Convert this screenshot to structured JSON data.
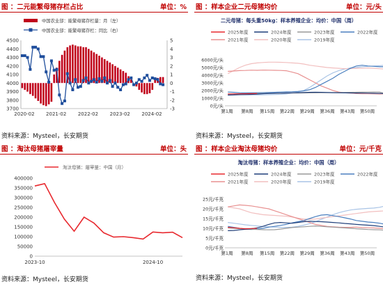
{
  "panels": [
    {
      "title": "图 ：二元能繁母猪存栏占比",
      "unit": "单位：%",
      "source": "资料来源：Mysteel，长安期货"
    },
    {
      "title": "图 ：样本企业二元母猪均价",
      "unit": "单位：元/头",
      "source": "资料来源：Mysteel，长安期货"
    },
    {
      "title": "图 ：淘汰母猪屠宰量",
      "unit": "单位：头",
      "source": "资料来源：Mysteel，长安期货"
    },
    {
      "title": "图 ：样本企业淘汰母猪均价",
      "unit": "单位：元/千克",
      "source": "资料来源：Mysteel，长安期货"
    }
  ],
  "chart_data": [
    {
      "type": "bar",
      "legend": [
        "中国农业部：能繁母猪存栏量：月（左）",
        "中国农业部：能繁母猪存栏：同比（右）"
      ],
      "x_ticks": [
        "2020-02",
        "2021-02",
        "2022-02",
        "2023-02",
        "2024-02"
      ],
      "y_left_ticks": [
        "3700",
        "3800",
        "3900",
        "4000",
        "4100",
        "4200",
        "4300",
        "4400",
        "4500"
      ],
      "y_right_ticks": [
        "-3",
        "-2",
        "-1",
        "0",
        "1",
        "2",
        "3",
        "4",
        "5"
      ],
      "ylim_left": [
        3700,
        4500
      ],
      "ylim_right": [
        -3,
        5
      ],
      "bar_values": [
        -0.6,
        -0.8,
        -1.0,
        -1.3,
        -1.5,
        -1.8,
        -2.1,
        -2.4,
        -2.6,
        -2.7,
        -2.5,
        -2.2,
        1.0,
        1.8,
        2.6,
        3.3,
        3.8,
        4.2,
        4.4,
        4.5,
        4.4,
        4.3,
        4.3,
        4.2,
        4.2,
        4.0,
        3.8,
        3.6,
        3.4,
        3.2,
        3.0,
        2.8,
        2.6,
        2.4,
        2.2,
        2.0,
        1.8,
        1.6,
        1.4,
        1.2,
        0.8,
        0.4,
        0.0,
        -0.4,
        -0.8,
        -1.1,
        -1.3,
        -1.3,
        -1.2,
        -0.8,
        0.6,
        0.6,
        0.7,
        0.7
      ],
      "line_values": [
        4320,
        4320,
        4300,
        4160,
        4420,
        4420,
        4400,
        4310,
        4310,
        4130,
        4010,
        4260,
        4150,
        4160,
        3860,
        3760,
        3790,
        4110,
        4000,
        3920,
        4040,
        3950,
        3960,
        4030,
        4060,
        4000,
        4020,
        4040,
        4010,
        4050,
        4020,
        4060,
        4000,
        4030,
        3960,
        4000,
        3950,
        3920,
        3980,
        3990,
        4040,
        4060,
        3980,
        4000,
        4040,
        4020,
        4060,
        4090,
        4030,
        4060,
        4050,
        4040,
        3990,
        3980
      ]
    },
    {
      "type": "line",
      "subtitle": "二元母猪：每头重50kg：样本养殖企业：均价：中国（周）",
      "x_ticks": [
        "第1周",
        "第8周",
        "第15周",
        "第22周",
        "第29周",
        "第36周",
        "第43周",
        "第50周"
      ],
      "y_ticks": [
        "0元/头",
        "1000元/头",
        "2000元/头",
        "3000元/头",
        "4000元/头",
        "5000元/头",
        "6000元/头"
      ],
      "ylim": [
        0,
        6000
      ],
      "series": [
        {
          "name": "2025年度",
          "color": "#e8292f",
          "values": [
            1550,
            1560,
            1570,
            1580,
            1590,
            1600
          ]
        },
        {
          "name": "2024年度",
          "color": "#1f3f7a",
          "values": [
            1400,
            1420,
            1450,
            1470,
            1500,
            1540,
            1580,
            1610,
            1640,
            1660,
            1680,
            1700,
            1720,
            1740,
            1760,
            1770,
            1760,
            1740,
            1720,
            1700,
            1690,
            1680,
            1670,
            1660,
            1650,
            1640,
            1620,
            1600
          ]
        },
        {
          "name": "2023年度",
          "color": "#999999",
          "values": [
            1550,
            1560,
            1570,
            1580,
            1590,
            1600,
            1610,
            1620,
            1630,
            1640,
            1650,
            1660,
            1670,
            1680,
            1690,
            1700,
            1710,
            1720,
            1730,
            1740,
            1750,
            1760,
            1770,
            1780,
            1790,
            1800,
            1780,
            1600
          ]
        },
        {
          "name": "2022年度",
          "color": "#4a7fbf",
          "values": [
            1800,
            1760,
            1700,
            1680,
            1690,
            1710,
            1720,
            1740,
            1760,
            1800,
            1830,
            1850,
            1880,
            1950,
            2100,
            2400,
            2800,
            3200,
            3600,
            4100,
            4500,
            4900,
            5200,
            5300,
            5200,
            5150,
            5100,
            5100
          ]
        },
        {
          "name": "2021年度",
          "color": "#e89090",
          "values": [
            4500,
            4550,
            4600,
            4620,
            4650,
            4640,
            4660,
            4650,
            4640,
            4620,
            4580,
            4400,
            4200,
            3800,
            3400,
            3000,
            2600,
            2300,
            2000,
            1800,
            1700,
            1650,
            1600,
            1580,
            1570,
            1560,
            1550,
            1560
          ]
        },
        {
          "name": "2020年度",
          "color": "#f2bfbf",
          "values": [
            4200,
            4600,
            5000,
            5300,
            5500,
            5600,
            5650,
            5700,
            5700,
            5680,
            5650,
            5600,
            5550,
            5450,
            5300,
            5200,
            5100,
            5000,
            4950,
            4900,
            4850,
            4850,
            4900,
            4900,
            4950,
            4900,
            4850,
            4800
          ]
        },
        {
          "name": "2019年度",
          "color": "#a9c4e6",
          "values": [
            1500,
            1480,
            1450,
            1430,
            1420,
            1420,
            1430,
            1450,
            1470,
            1500,
            1550,
            1650,
            1800,
            2000,
            2400,
            2900,
            3400,
            3900,
            4300,
            4600,
            4800,
            4950,
            5000,
            5100,
            5150,
            5200,
            5250,
            5300
          ]
        }
      ]
    },
    {
      "type": "line",
      "legend": [
        "淘汰母猪：屠宰量：中国（月）"
      ],
      "x_ticks": [
        "2023-10",
        "2024-10"
      ],
      "y_ticks": [
        "0",
        "50000",
        "100000",
        "150000",
        "200000",
        "250000",
        "300000",
        "350000",
        "400000"
      ],
      "ylim": [
        0,
        400000
      ],
      "values": [
        360000,
        372000,
        275000,
        190000,
        128000,
        200000,
        170000,
        120000,
        98000,
        100000,
        95000,
        88000,
        124000,
        120000,
        123000,
        95000
      ]
    },
    {
      "type": "line",
      "subtitle": "淘汰母猪：样本养殖企业：均价：中国（周）",
      "x_ticks": [
        "第1周",
        "第8周",
        "第15周",
        "第22周",
        "第29周",
        "第36周",
        "第43周",
        "第50周"
      ],
      "y_ticks": [
        "0元/千克",
        "5元/千克",
        "10元/千克",
        "15元/千克",
        "20元/千克",
        "25元/千克"
      ],
      "ylim": [
        0,
        25
      ],
      "series": [
        {
          "name": "2025年度",
          "color": "#e8292f",
          "values": [
            10.5,
            10.3,
            10.0,
            9.8,
            9.9,
            10.0
          ]
        },
        {
          "name": "2024年度",
          "color": "#1f3f7a",
          "values": [
            8.8,
            8.9,
            9.2,
            9.5,
            9.8,
            10.2,
            11.0,
            12.0,
            12.8,
            13.0,
            12.8,
            12.6,
            13.0,
            13.4,
            13.6,
            13.5,
            13.4,
            13.2,
            13.0,
            12.8,
            12.5,
            12.3,
            12.0,
            11.8,
            11.6,
            11.4,
            11.0,
            10.6
          ]
        },
        {
          "name": "2023年度",
          "color": "#999999",
          "values": [
            10.2,
            10.0,
            9.8,
            9.6,
            9.5,
            9.4,
            9.3,
            9.2,
            9.3,
            9.6,
            10.0,
            10.4,
            10.6,
            10.8,
            11.0,
            11.2,
            11.0,
            10.8,
            10.6,
            10.4,
            10.2,
            10.0,
            9.8,
            9.6,
            9.4,
            9.3,
            9.2,
            9.0
          ]
        },
        {
          "name": "2022年度",
          "color": "#4a7fbf",
          "values": [
            11.0,
            10.5,
            10.0,
            9.6,
            9.4,
            9.6,
            10.0,
            10.6,
            11.0,
            11.5,
            12.0,
            12.8,
            13.4,
            14.0,
            15.0,
            16.0,
            16.8,
            17.0,
            16.5,
            16.0,
            15.4,
            14.8,
            14.0,
            13.6,
            13.2,
            13.0,
            12.6,
            12.0
          ]
        },
        {
          "name": "2021年度",
          "color": "#e89090",
          "values": [
            21.0,
            21.5,
            22.0,
            21.8,
            21.5,
            21.0,
            20.5,
            20.0,
            19.0,
            18.0,
            17.0,
            16.0,
            15.0,
            14.0,
            13.0,
            12.0,
            11.5,
            11.0,
            10.8,
            10.6,
            10.5,
            10.5,
            10.6,
            10.4,
            10.3,
            10.2,
            10.0,
            9.8
          ]
        },
        {
          "name": "2020年度",
          "color": "#f2bfbf",
          "values": [
            21.0,
            20.5,
            20.0,
            19.0,
            18.0,
            17.5,
            17.0,
            16.8,
            16.6,
            16.4,
            16.2,
            15.8,
            15.2,
            14.8,
            14.6,
            14.8,
            15.2,
            15.6,
            16.0,
            16.4,
            16.8,
            17.2,
            17.6,
            18.0,
            18.4,
            18.6,
            18.8,
            19.0
          ]
        },
        {
          "name": "2019年度",
          "color": "#a9c4e6",
          "values": [
            13.0,
            12.6,
            12.2,
            11.8,
            11.5,
            11.2,
            11.0,
            10.8,
            10.6,
            10.5,
            10.5,
            10.6,
            11.0,
            11.6,
            12.4,
            13.4,
            14.6,
            15.8,
            17.0,
            18.0,
            18.8,
            19.4,
            19.8,
            20.0,
            20.2,
            20.4,
            20.8,
            21.5
          ]
        }
      ]
    }
  ]
}
